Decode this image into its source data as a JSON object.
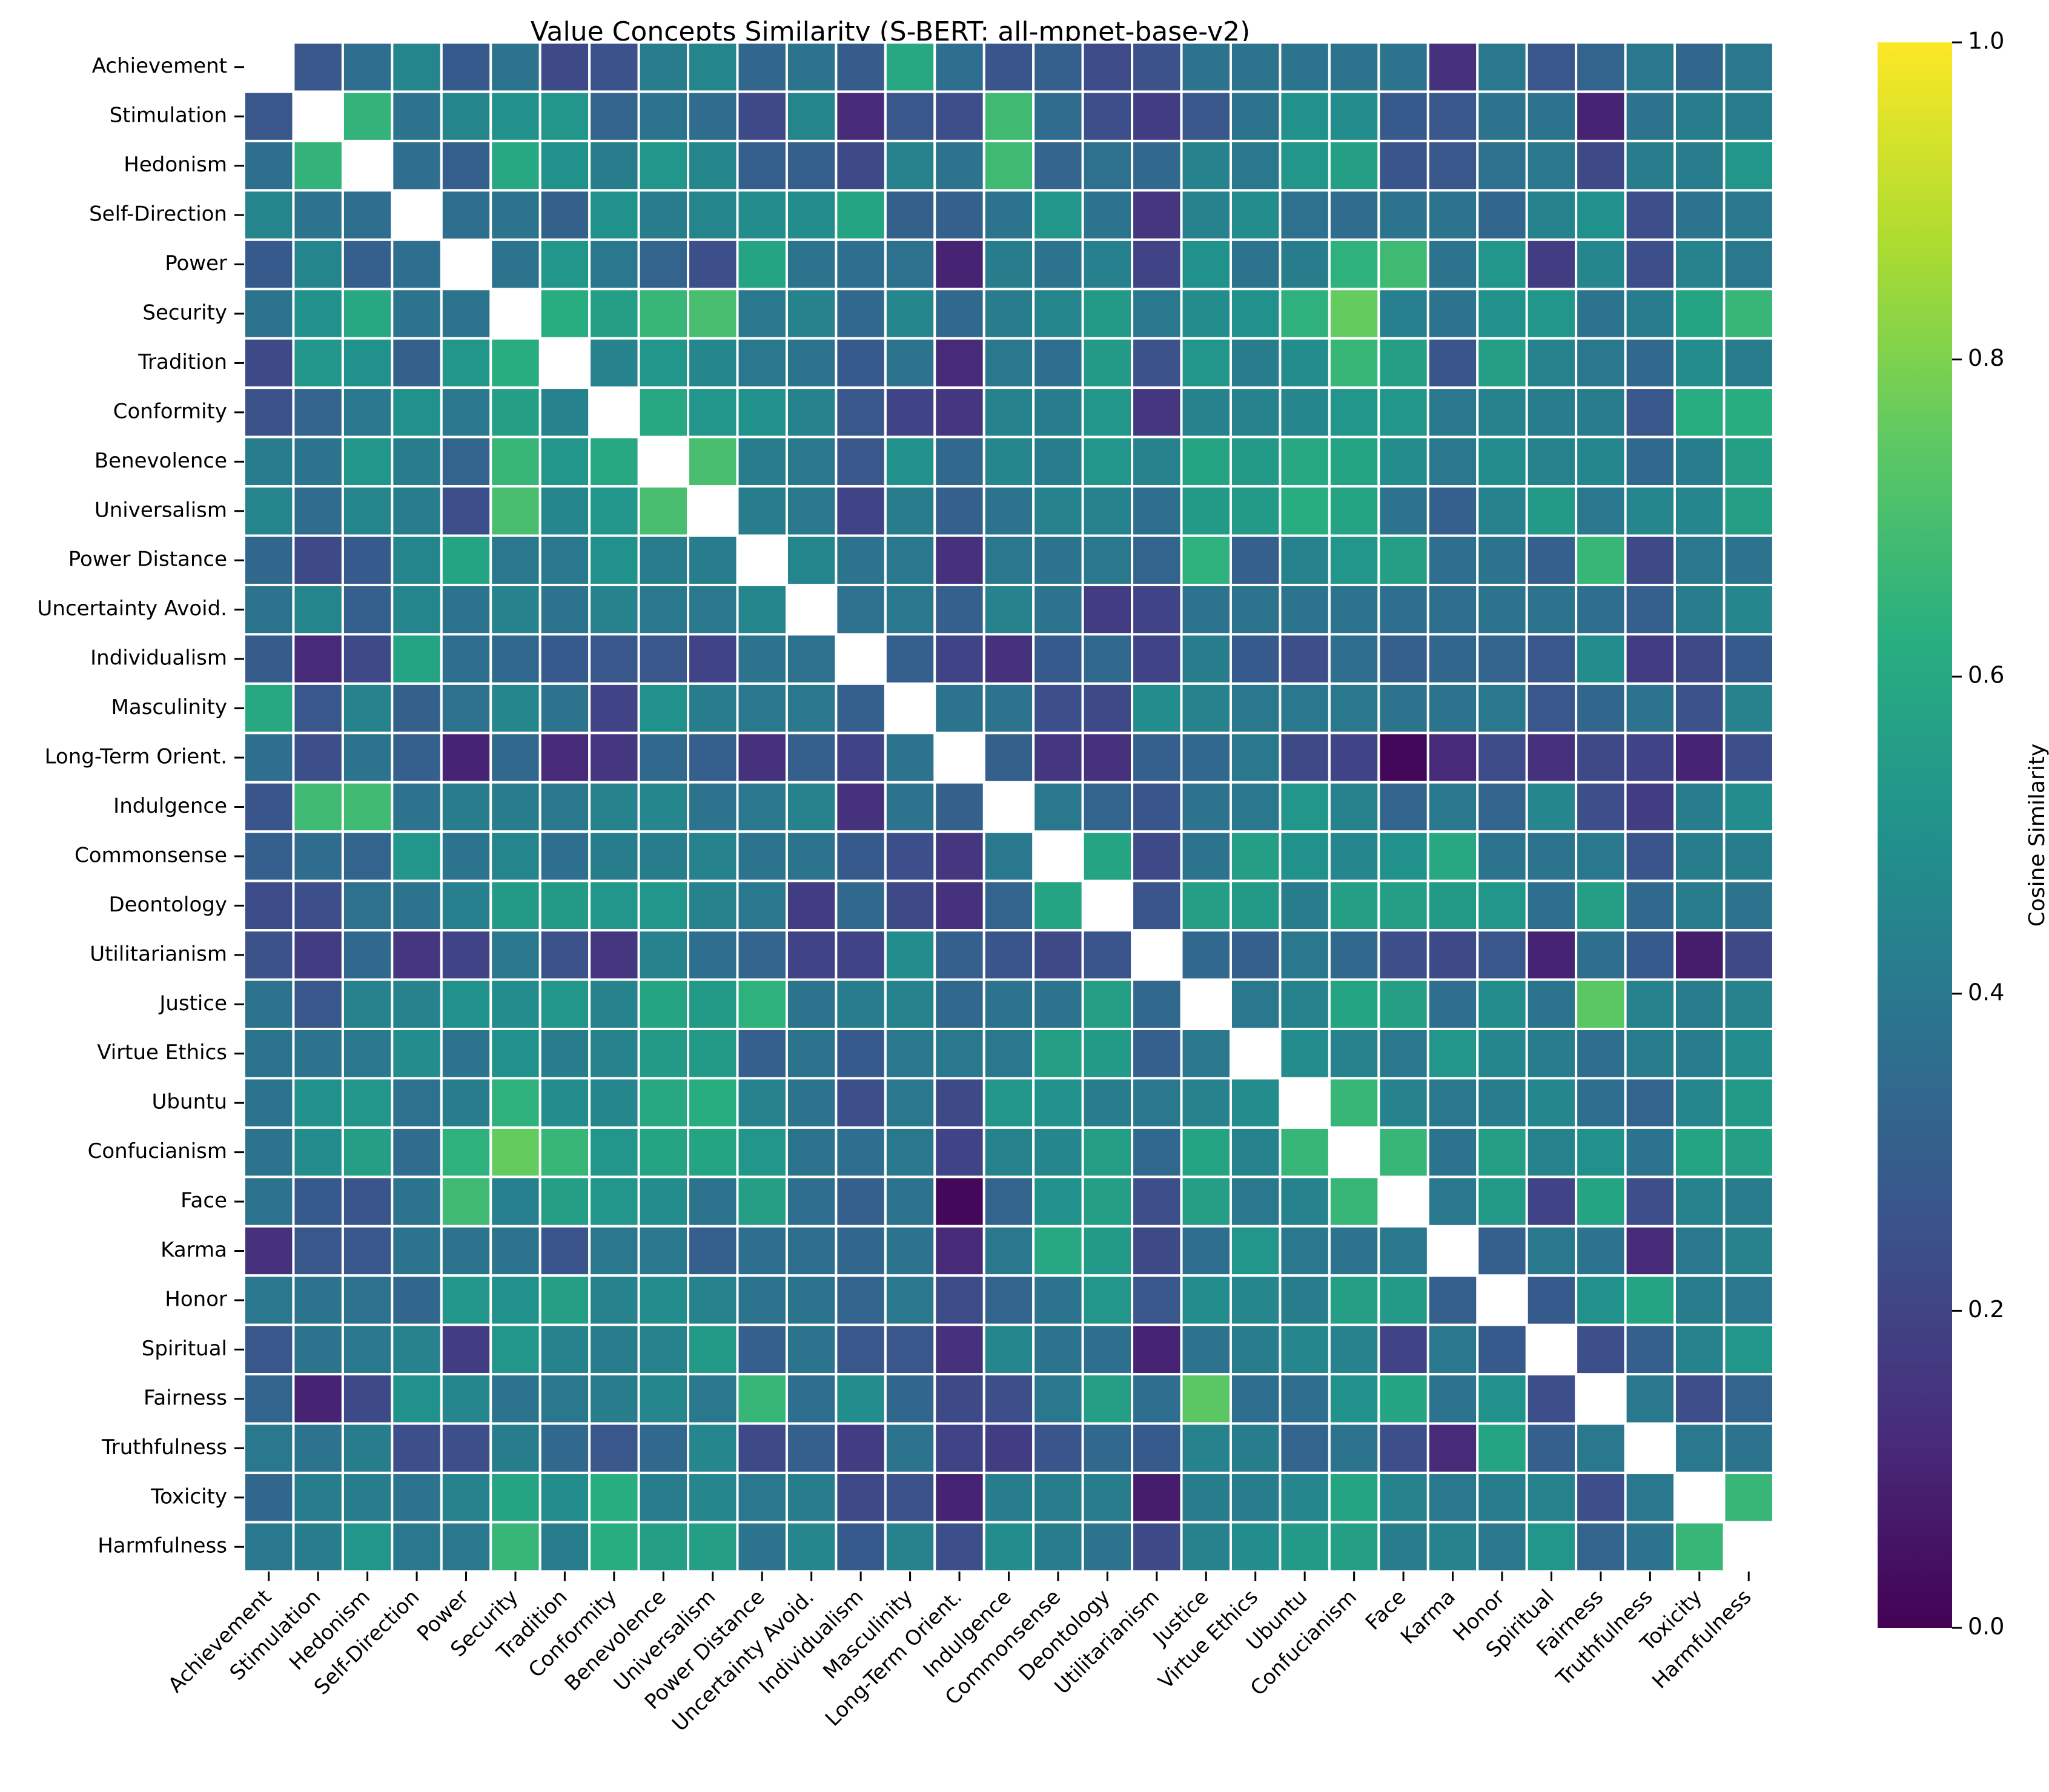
{
  "chart_data": {
    "type": "heatmap",
    "title": "Value Concepts Similarity (S-BERT: all-mpnet-base-v2)",
    "labels": [
      "Achievement",
      "Stimulation",
      "Hedonism",
      "Self-Direction",
      "Power",
      "Security",
      "Tradition",
      "Conformity",
      "Benevolence",
      "Universalism",
      "Power Distance",
      "Uncertainty Avoid.",
      "Individualism",
      "Masculinity",
      "Long-Term Orient.",
      "Indulgence",
      "Commonsense",
      "Deontology",
      "Utilitarianism",
      "Justice",
      "Virtue Ethics",
      "Ubuntu",
      "Confucianism",
      "Face",
      "Karma",
      "Honor",
      "Spiritual",
      "Fairness",
      "Truthfulness",
      "Toxicity",
      "Harmfulness"
    ],
    "colorbar": {
      "label": "Cosine Similarity",
      "range": [
        0,
        1
      ],
      "ticks": [
        "0.0",
        "0.2",
        "0.4",
        "0.6",
        "0.8",
        "1.0"
      ],
      "colormap": "viridis"
    },
    "diagonal": "masked",
    "values": [
      [
        null,
        0.27,
        0.36,
        0.45,
        0.28,
        0.38,
        0.22,
        0.25,
        0.42,
        0.45,
        0.33,
        0.38,
        0.29,
        0.6,
        0.36,
        0.26,
        0.3,
        0.23,
        0.25,
        0.38,
        0.38,
        0.38,
        0.38,
        0.38,
        0.14,
        0.4,
        0.27,
        0.32,
        0.4,
        0.33,
        0.4
      ],
      [
        0.27,
        null,
        0.65,
        0.38,
        0.45,
        0.5,
        0.52,
        0.32,
        0.38,
        0.35,
        0.22,
        0.45,
        0.12,
        0.27,
        0.24,
        0.68,
        0.35,
        0.24,
        0.18,
        0.27,
        0.38,
        0.5,
        0.48,
        0.28,
        0.27,
        0.38,
        0.38,
        0.1,
        0.38,
        0.42,
        0.42
      ],
      [
        0.36,
        0.65,
        null,
        0.36,
        0.3,
        0.6,
        0.5,
        0.42,
        0.52,
        0.45,
        0.3,
        0.3,
        0.22,
        0.44,
        0.38,
        0.68,
        0.32,
        0.37,
        0.34,
        0.44,
        0.4,
        0.52,
        0.56,
        0.26,
        0.27,
        0.37,
        0.4,
        0.22,
        0.42,
        0.42,
        0.52
      ],
      [
        0.45,
        0.38,
        0.36,
        null,
        0.36,
        0.38,
        0.31,
        0.5,
        0.42,
        0.45,
        0.48,
        0.48,
        0.58,
        0.31,
        0.3,
        0.38,
        0.52,
        0.38,
        0.16,
        0.44,
        0.48,
        0.37,
        0.35,
        0.38,
        0.38,
        0.33,
        0.44,
        0.5,
        0.24,
        0.38,
        0.4
      ],
      [
        0.28,
        0.45,
        0.3,
        0.36,
        null,
        0.38,
        0.52,
        0.4,
        0.32,
        0.24,
        0.58,
        0.38,
        0.36,
        0.37,
        0.1,
        0.42,
        0.38,
        0.43,
        0.2,
        0.5,
        0.38,
        0.42,
        0.64,
        0.68,
        0.38,
        0.52,
        0.18,
        0.46,
        0.24,
        0.44,
        0.4
      ],
      [
        0.38,
        0.5,
        0.6,
        0.38,
        0.38,
        null,
        0.62,
        0.56,
        0.66,
        0.7,
        0.4,
        0.44,
        0.34,
        0.46,
        0.34,
        0.42,
        0.45,
        0.54,
        0.4,
        0.48,
        0.5,
        0.64,
        0.76,
        0.43,
        0.38,
        0.5,
        0.52,
        0.38,
        0.42,
        0.58,
        0.66
      ],
      [
        0.22,
        0.52,
        0.5,
        0.31,
        0.52,
        0.62,
        null,
        0.44,
        0.52,
        0.46,
        0.4,
        0.38,
        0.28,
        0.38,
        0.12,
        0.4,
        0.36,
        0.54,
        0.25,
        0.52,
        0.42,
        0.48,
        0.66,
        0.56,
        0.26,
        0.56,
        0.44,
        0.4,
        0.34,
        0.48,
        0.42
      ],
      [
        0.25,
        0.32,
        0.4,
        0.5,
        0.4,
        0.56,
        0.44,
        null,
        0.6,
        0.52,
        0.5,
        0.44,
        0.27,
        0.2,
        0.16,
        0.44,
        0.42,
        0.52,
        0.16,
        0.44,
        0.44,
        0.46,
        0.52,
        0.52,
        0.4,
        0.44,
        0.42,
        0.42,
        0.27,
        0.62,
        0.62
      ],
      [
        0.42,
        0.38,
        0.52,
        0.42,
        0.32,
        0.66,
        0.52,
        0.6,
        null,
        0.7,
        0.42,
        0.4,
        0.27,
        0.5,
        0.34,
        0.46,
        0.42,
        0.52,
        0.44,
        0.58,
        0.54,
        0.6,
        0.58,
        0.48,
        0.4,
        0.48,
        0.44,
        0.46,
        0.34,
        0.42,
        0.56
      ],
      [
        0.45,
        0.35,
        0.45,
        0.42,
        0.24,
        0.7,
        0.46,
        0.52,
        0.7,
        null,
        0.42,
        0.4,
        0.2,
        0.42,
        0.3,
        0.38,
        0.44,
        0.44,
        0.36,
        0.54,
        0.54,
        0.62,
        0.58,
        0.38,
        0.3,
        0.44,
        0.54,
        0.4,
        0.46,
        0.46,
        0.56
      ],
      [
        0.33,
        0.22,
        0.28,
        0.45,
        0.58,
        0.4,
        0.4,
        0.5,
        0.42,
        0.42,
        null,
        0.45,
        0.38,
        0.4,
        0.14,
        0.4,
        0.38,
        0.4,
        0.32,
        0.64,
        0.3,
        0.44,
        0.52,
        0.56,
        0.36,
        0.38,
        0.3,
        0.66,
        0.22,
        0.4,
        0.38
      ],
      [
        0.38,
        0.45,
        0.3,
        0.45,
        0.38,
        0.44,
        0.38,
        0.44,
        0.4,
        0.4,
        0.45,
        null,
        0.37,
        0.4,
        0.3,
        0.44,
        0.38,
        0.18,
        0.2,
        0.38,
        0.38,
        0.38,
        0.38,
        0.36,
        0.36,
        0.38,
        0.38,
        0.36,
        0.3,
        0.42,
        0.46
      ],
      [
        0.29,
        0.12,
        0.22,
        0.58,
        0.36,
        0.34,
        0.28,
        0.27,
        0.27,
        0.2,
        0.38,
        0.37,
        null,
        0.3,
        0.2,
        0.14,
        0.28,
        0.34,
        0.2,
        0.42,
        0.28,
        0.24,
        0.36,
        0.3,
        0.33,
        0.32,
        0.27,
        0.48,
        0.18,
        0.22,
        0.28
      ],
      [
        0.6,
        0.27,
        0.44,
        0.31,
        0.37,
        0.46,
        0.38,
        0.2,
        0.5,
        0.42,
        0.4,
        0.4,
        0.3,
        null,
        0.38,
        0.38,
        0.24,
        0.22,
        0.48,
        0.44,
        0.4,
        0.4,
        0.4,
        0.38,
        0.38,
        0.4,
        0.27,
        0.33,
        0.38,
        0.25,
        0.44
      ],
      [
        0.36,
        0.24,
        0.38,
        0.3,
        0.1,
        0.34,
        0.12,
        0.16,
        0.34,
        0.3,
        0.14,
        0.3,
        0.2,
        0.38,
        null,
        0.31,
        0.16,
        0.14,
        0.3,
        0.34,
        0.4,
        0.22,
        0.2,
        0.02,
        0.12,
        0.23,
        0.14,
        0.22,
        0.2,
        0.1,
        0.24
      ],
      [
        0.26,
        0.68,
        0.68,
        0.38,
        0.42,
        0.42,
        0.4,
        0.44,
        0.46,
        0.38,
        0.4,
        0.44,
        0.14,
        0.38,
        0.31,
        null,
        0.4,
        0.32,
        0.26,
        0.38,
        0.4,
        0.52,
        0.44,
        0.32,
        0.4,
        0.32,
        0.46,
        0.24,
        0.18,
        0.42,
        0.48
      ],
      [
        0.3,
        0.35,
        0.32,
        0.52,
        0.38,
        0.45,
        0.36,
        0.42,
        0.42,
        0.44,
        0.38,
        0.38,
        0.28,
        0.24,
        0.16,
        0.4,
        null,
        0.58,
        0.22,
        0.38,
        0.56,
        0.5,
        0.46,
        0.5,
        0.6,
        0.38,
        0.38,
        0.4,
        0.26,
        0.42,
        0.42
      ],
      [
        0.23,
        0.24,
        0.37,
        0.38,
        0.43,
        0.54,
        0.54,
        0.52,
        0.52,
        0.44,
        0.4,
        0.18,
        0.34,
        0.22,
        0.14,
        0.32,
        0.58,
        null,
        0.26,
        0.56,
        0.54,
        0.42,
        0.56,
        0.56,
        0.54,
        0.52,
        0.36,
        0.56,
        0.34,
        0.42,
        0.38
      ],
      [
        0.25,
        0.18,
        0.34,
        0.16,
        0.2,
        0.4,
        0.25,
        0.16,
        0.44,
        0.36,
        0.32,
        0.2,
        0.2,
        0.48,
        0.3,
        0.26,
        0.22,
        0.26,
        null,
        0.34,
        0.3,
        0.4,
        0.34,
        0.24,
        0.22,
        0.27,
        0.1,
        0.36,
        0.28,
        0.08,
        0.22
      ],
      [
        0.38,
        0.27,
        0.44,
        0.44,
        0.5,
        0.48,
        0.52,
        0.44,
        0.58,
        0.54,
        0.64,
        0.38,
        0.42,
        0.44,
        0.34,
        0.38,
        0.38,
        0.56,
        0.34,
        null,
        0.4,
        0.44,
        0.58,
        0.56,
        0.36,
        0.48,
        0.38,
        0.74,
        0.44,
        0.42,
        0.44
      ],
      [
        0.38,
        0.38,
        0.4,
        0.48,
        0.38,
        0.5,
        0.42,
        0.44,
        0.54,
        0.54,
        0.3,
        0.38,
        0.28,
        0.4,
        0.4,
        0.4,
        0.56,
        0.54,
        0.3,
        0.4,
        null,
        0.48,
        0.44,
        0.4,
        0.52,
        0.46,
        0.42,
        0.36,
        0.42,
        0.42,
        0.48
      ],
      [
        0.38,
        0.5,
        0.52,
        0.37,
        0.42,
        0.64,
        0.48,
        0.46,
        0.6,
        0.62,
        0.44,
        0.38,
        0.24,
        0.4,
        0.22,
        0.52,
        0.5,
        0.42,
        0.4,
        0.44,
        0.48,
        null,
        0.66,
        0.44,
        0.4,
        0.42,
        0.46,
        0.36,
        0.32,
        0.46,
        0.54
      ],
      [
        0.38,
        0.48,
        0.56,
        0.35,
        0.64,
        0.76,
        0.66,
        0.52,
        0.58,
        0.58,
        0.52,
        0.38,
        0.36,
        0.4,
        0.2,
        0.44,
        0.46,
        0.56,
        0.34,
        0.58,
        0.44,
        0.66,
        null,
        0.66,
        0.38,
        0.56,
        0.44,
        0.5,
        0.38,
        0.58,
        0.56
      ],
      [
        0.38,
        0.28,
        0.26,
        0.38,
        0.68,
        0.43,
        0.56,
        0.52,
        0.48,
        0.38,
        0.56,
        0.36,
        0.3,
        0.38,
        0.02,
        0.32,
        0.5,
        0.56,
        0.24,
        0.56,
        0.4,
        0.44,
        0.66,
        null,
        0.4,
        0.54,
        0.2,
        0.58,
        0.24,
        0.44,
        0.42
      ],
      [
        0.14,
        0.27,
        0.27,
        0.38,
        0.38,
        0.38,
        0.26,
        0.4,
        0.4,
        0.3,
        0.36,
        0.36,
        0.33,
        0.38,
        0.12,
        0.4,
        0.6,
        0.54,
        0.22,
        0.36,
        0.52,
        0.4,
        0.38,
        0.4,
        null,
        0.3,
        0.4,
        0.38,
        0.12,
        0.4,
        0.44
      ],
      [
        0.4,
        0.38,
        0.37,
        0.33,
        0.52,
        0.5,
        0.56,
        0.44,
        0.48,
        0.44,
        0.38,
        0.38,
        0.32,
        0.4,
        0.23,
        0.32,
        0.38,
        0.52,
        0.27,
        0.48,
        0.46,
        0.42,
        0.56,
        0.54,
        0.3,
        null,
        0.28,
        0.5,
        0.58,
        0.42,
        0.4
      ],
      [
        0.27,
        0.38,
        0.4,
        0.44,
        0.18,
        0.52,
        0.44,
        0.42,
        0.44,
        0.54,
        0.3,
        0.38,
        0.27,
        0.27,
        0.14,
        0.46,
        0.38,
        0.36,
        0.1,
        0.38,
        0.42,
        0.46,
        0.44,
        0.2,
        0.4,
        0.28,
        null,
        0.24,
        0.3,
        0.44,
        0.52
      ],
      [
        0.32,
        0.1,
        0.22,
        0.5,
        0.46,
        0.38,
        0.4,
        0.42,
        0.46,
        0.4,
        0.66,
        0.36,
        0.48,
        0.33,
        0.22,
        0.24,
        0.4,
        0.56,
        0.36,
        0.74,
        0.36,
        0.36,
        0.5,
        0.58,
        0.38,
        0.5,
        0.24,
        null,
        0.4,
        0.24,
        0.32
      ],
      [
        0.4,
        0.38,
        0.42,
        0.24,
        0.24,
        0.42,
        0.34,
        0.27,
        0.34,
        0.46,
        0.22,
        0.3,
        0.18,
        0.38,
        0.2,
        0.18,
        0.26,
        0.34,
        0.28,
        0.44,
        0.42,
        0.32,
        0.38,
        0.24,
        0.12,
        0.58,
        0.3,
        0.4,
        null,
        0.4,
        0.38
      ],
      [
        0.33,
        0.42,
        0.42,
        0.38,
        0.44,
        0.58,
        0.48,
        0.62,
        0.42,
        0.46,
        0.4,
        0.42,
        0.22,
        0.25,
        0.1,
        0.42,
        0.42,
        0.42,
        0.08,
        0.42,
        0.42,
        0.46,
        0.58,
        0.44,
        0.4,
        0.42,
        0.44,
        0.24,
        0.4,
        null,
        0.66
      ],
      [
        0.4,
        0.42,
        0.52,
        0.4,
        0.4,
        0.66,
        0.42,
        0.62,
        0.56,
        0.56,
        0.38,
        0.46,
        0.28,
        0.44,
        0.24,
        0.48,
        0.42,
        0.38,
        0.22,
        0.44,
        0.48,
        0.54,
        0.56,
        0.42,
        0.44,
        0.4,
        0.52,
        0.32,
        0.38,
        0.66,
        null
      ]
    ]
  }
}
